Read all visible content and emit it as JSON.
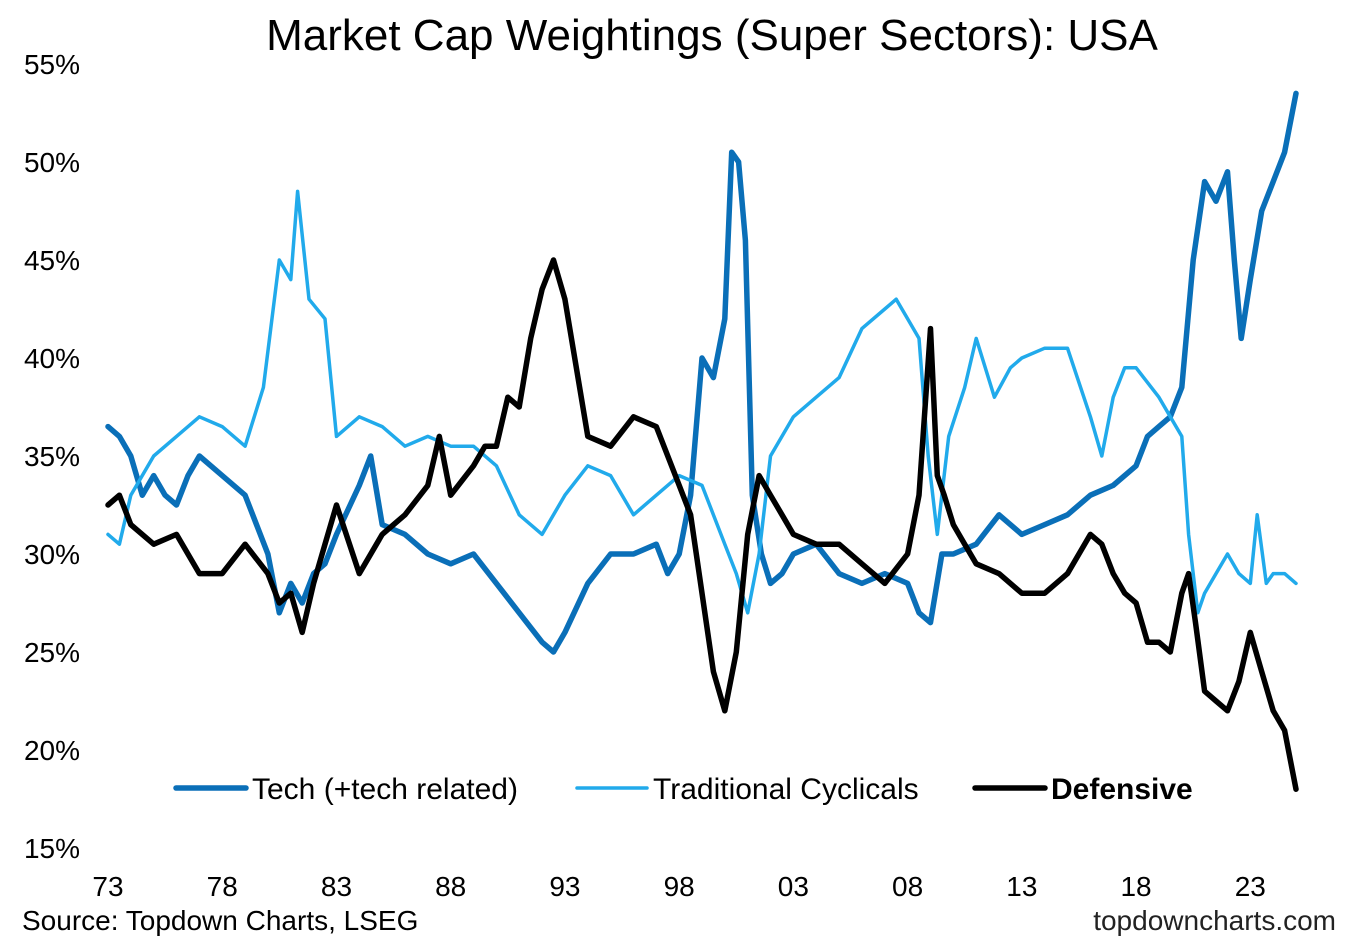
{
  "chart_data": {
    "type": "line",
    "title": "Market Cap Weightings (Super Sectors): USA",
    "xlabel": "",
    "ylabel": "",
    "ylim": [
      15,
      55
    ],
    "xlim": [
      1973,
      2025
    ],
    "y_ticks": [
      15,
      20,
      25,
      30,
      35,
      40,
      45,
      50,
      55
    ],
    "y_tick_labels": [
      "15%",
      "20%",
      "25%",
      "30%",
      "35%",
      "40%",
      "45%",
      "50%",
      "55%"
    ],
    "x_ticks": [
      1973,
      1978,
      1983,
      1988,
      1993,
      1998,
      2003,
      2008,
      2013,
      2018,
      2023
    ],
    "x_tick_labels": [
      "73",
      "78",
      "83",
      "88",
      "93",
      "98",
      "03",
      "08",
      "13",
      "18",
      "23"
    ],
    "grid": false,
    "legend_position": "bottom",
    "series": [
      {
        "name": "Tech (+tech related)",
        "color": "#0a6fb8",
        "stroke": "thick",
        "bold_label": false,
        "x": [
          1973.0,
          1973.5,
          1974.0,
          1974.5,
          1975.0,
          1975.5,
          1976.0,
          1976.5,
          1977.0,
          1978.0,
          1979.0,
          1980.0,
          1980.5,
          1981.0,
          1981.5,
          1982.0,
          1982.5,
          1983.0,
          1984.0,
          1984.5,
          1985.0,
          1986.0,
          1987.0,
          1988.0,
          1989.0,
          1990.0,
          1991.0,
          1992.0,
          1992.5,
          1993.0,
          1994.0,
          1995.0,
          1996.0,
          1997.0,
          1997.5,
          1998.0,
          1998.5,
          1999.0,
          1999.5,
          2000.0,
          2000.3,
          2000.6,
          2000.9,
          2001.2,
          2001.6,
          2002.0,
          2002.5,
          2003.0,
          2004.0,
          2005.0,
          2006.0,
          2007.0,
          2008.0,
          2008.5,
          2009.0,
          2009.5,
          2010.0,
          2011.0,
          2012.0,
          2013.0,
          2014.0,
          2015.0,
          2016.0,
          2017.0,
          2018.0,
          2018.5,
          2019.0,
          2019.5,
          2020.0,
          2020.5,
          2021.0,
          2021.5,
          2022.0,
          2022.3,
          2022.6,
          2023.0,
          2023.5,
          2024.0,
          2024.5,
          2025.0
        ],
        "values": [
          36.5,
          36.0,
          35.0,
          33.0,
          34.0,
          33.0,
          32.5,
          34.0,
          35.0,
          34.0,
          33.0,
          30.0,
          27.0,
          28.5,
          27.5,
          29.0,
          29.5,
          31.0,
          33.5,
          35.0,
          31.5,
          31.0,
          30.0,
          29.5,
          30.0,
          28.5,
          27.0,
          25.5,
          25.0,
          26.0,
          28.5,
          30.0,
          30.0,
          30.5,
          29.0,
          30.0,
          33.0,
          40.0,
          39.0,
          42.0,
          50.5,
          50.0,
          46.0,
          33.0,
          30.0,
          28.5,
          29.0,
          30.0,
          30.5,
          29.0,
          28.5,
          29.0,
          28.5,
          27.0,
          26.5,
          30.0,
          30.0,
          30.5,
          32.0,
          31.0,
          31.5,
          32.0,
          33.0,
          33.5,
          34.5,
          36.0,
          36.5,
          37.0,
          38.5,
          45.0,
          49.0,
          48.0,
          49.5,
          45.0,
          41.0,
          44.0,
          47.5,
          49.0,
          50.5,
          53.5
        ]
      },
      {
        "name": "Traditional Cyclicals",
        "color": "#21aaeb",
        "stroke": "medium",
        "bold_label": false,
        "x": [
          1973.0,
          1973.5,
          1974.0,
          1975.0,
          1976.0,
          1977.0,
          1978.0,
          1979.0,
          1979.8,
          1980.5,
          1981.0,
          1981.3,
          1981.8,
          1982.5,
          1983.0,
          1984.0,
          1985.0,
          1986.0,
          1987.0,
          1988.0,
          1989.0,
          1990.0,
          1991.0,
          1992.0,
          1993.0,
          1994.0,
          1995.0,
          1996.0,
          1997.0,
          1998.0,
          1999.0,
          2000.0,
          2000.5,
          2001.0,
          2001.5,
          2002.0,
          2003.0,
          2004.0,
          2005.0,
          2006.0,
          2007.0,
          2007.5,
          2008.0,
          2008.5,
          2008.9,
          2009.3,
          2009.8,
          2010.5,
          2011.0,
          2011.8,
          2012.5,
          2013.0,
          2014.0,
          2015.0,
          2016.0,
          2016.5,
          2017.0,
          2017.5,
          2018.0,
          2019.0,
          2019.5,
          2020.0,
          2020.3,
          2020.7,
          2021.0,
          2021.5,
          2022.0,
          2022.5,
          2023.0,
          2023.3,
          2023.7,
          2024.0,
          2024.5,
          2025.0
        ],
        "values": [
          31.0,
          30.5,
          33.0,
          35.0,
          36.0,
          37.0,
          36.5,
          35.5,
          38.5,
          45.0,
          44.0,
          48.5,
          43.0,
          42.0,
          36.0,
          37.0,
          36.5,
          35.5,
          36.0,
          35.5,
          35.5,
          34.5,
          32.0,
          31.0,
          33.0,
          34.5,
          34.0,
          32.0,
          33.0,
          34.0,
          33.5,
          30.5,
          29.0,
          27.0,
          30.0,
          35.0,
          37.0,
          38.0,
          39.0,
          41.5,
          42.5,
          43.0,
          42.0,
          41.0,
          35.0,
          31.0,
          36.0,
          38.5,
          41.0,
          38.0,
          39.5,
          40.0,
          40.5,
          40.5,
          37.0,
          35.0,
          38.0,
          39.5,
          39.5,
          38.0,
          37.0,
          36.0,
          31.0,
          27.0,
          28.0,
          29.0,
          30.0,
          29.0,
          28.5,
          32.0,
          28.5,
          29.0,
          29.0,
          28.5
        ]
      },
      {
        "name": "Defensive",
        "color": "#000000",
        "stroke": "thick",
        "bold_label": true,
        "x": [
          1973.0,
          1973.5,
          1974.0,
          1975.0,
          1976.0,
          1977.0,
          1978.0,
          1979.0,
          1980.0,
          1980.5,
          1981.0,
          1981.5,
          1982.0,
          1982.5,
          1983.0,
          1984.0,
          1985.0,
          1986.0,
          1987.0,
          1987.5,
          1988.0,
          1989.0,
          1989.5,
          1990.0,
          1990.5,
          1991.0,
          1991.5,
          1992.0,
          1992.5,
          1993.0,
          1994.0,
          1995.0,
          1996.0,
          1997.0,
          1998.0,
          1998.5,
          1999.0,
          1999.5,
          2000.0,
          2000.5,
          2001.0,
          2001.5,
          2002.0,
          2002.5,
          2003.0,
          2004.0,
          2005.0,
          2006.0,
          2007.0,
          2008.0,
          2008.5,
          2009.0,
          2009.3,
          2009.6,
          2010.0,
          2010.5,
          2011.0,
          2012.0,
          2013.0,
          2014.0,
          2015.0,
          2016.0,
          2016.5,
          2017.0,
          2017.5,
          2018.0,
          2018.5,
          2019.0,
          2019.5,
          2020.0,
          2020.3,
          2020.6,
          2021.0,
          2021.5,
          2022.0,
          2022.5,
          2022.8,
          2023.0,
          2023.5,
          2024.0,
          2024.5,
          2025.0
        ],
        "values": [
          32.5,
          33.0,
          31.5,
          30.5,
          31.0,
          29.0,
          29.0,
          30.5,
          29.0,
          27.5,
          28.0,
          26.0,
          28.5,
          30.5,
          32.5,
          29.0,
          31.0,
          32.0,
          33.5,
          36.0,
          33.0,
          34.5,
          35.5,
          35.5,
          38.0,
          37.5,
          41.0,
          43.5,
          45.0,
          43.0,
          36.0,
          35.5,
          37.0,
          36.5,
          33.5,
          32.0,
          28.0,
          24.0,
          22.0,
          25.0,
          31.0,
          34.0,
          33.0,
          32.0,
          31.0,
          30.5,
          30.5,
          29.5,
          28.5,
          30.0,
          33.0,
          41.5,
          34.0,
          33.0,
          31.5,
          30.5,
          29.5,
          29.0,
          28.0,
          28.0,
          29.0,
          31.0,
          30.5,
          29.0,
          28.0,
          27.5,
          25.5,
          25.5,
          25.0,
          28.0,
          29.0,
          26.5,
          23.0,
          22.5,
          22.0,
          23.5,
          25.0,
          26.0,
          24.0,
          22.0,
          21.0,
          18.0
        ]
      }
    ],
    "footer_source": "Source: Topdown Charts, LSEG",
    "footer_brand": "topdowncharts.com"
  }
}
